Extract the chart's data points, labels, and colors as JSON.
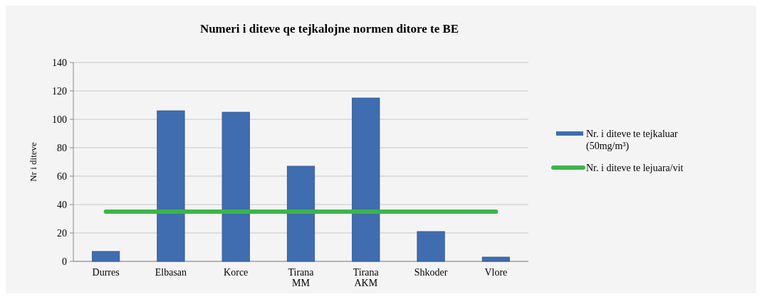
{
  "chart_data": {
    "type": "bar",
    "title": "Numeri i diteve qe tejkalojne normen ditore te BE",
    "ylabel": "Nr i diteve",
    "categories": [
      "Durres",
      "Elbasan",
      "Korce",
      "Tirana MM",
      "Tirana AKM",
      "Shkoder",
      "Vlore"
    ],
    "series": [
      {
        "name": "Nr. i diteve te tejkaluar (50mg/m³)",
        "color": "#3f6db0",
        "values": [
          7,
          106,
          105,
          67,
          115,
          21,
          3
        ]
      },
      {
        "name": "Nr. i diteve te lejuara/vit",
        "type": "line",
        "color": "#3ab54a",
        "values": [
          35,
          35,
          35,
          35,
          35,
          35,
          35
        ]
      }
    ],
    "ylim": [
      0,
      140
    ],
    "yticks": [
      0,
      20,
      40,
      60,
      80,
      100,
      120,
      140
    ],
    "grid": "y",
    "legend": "right"
  }
}
